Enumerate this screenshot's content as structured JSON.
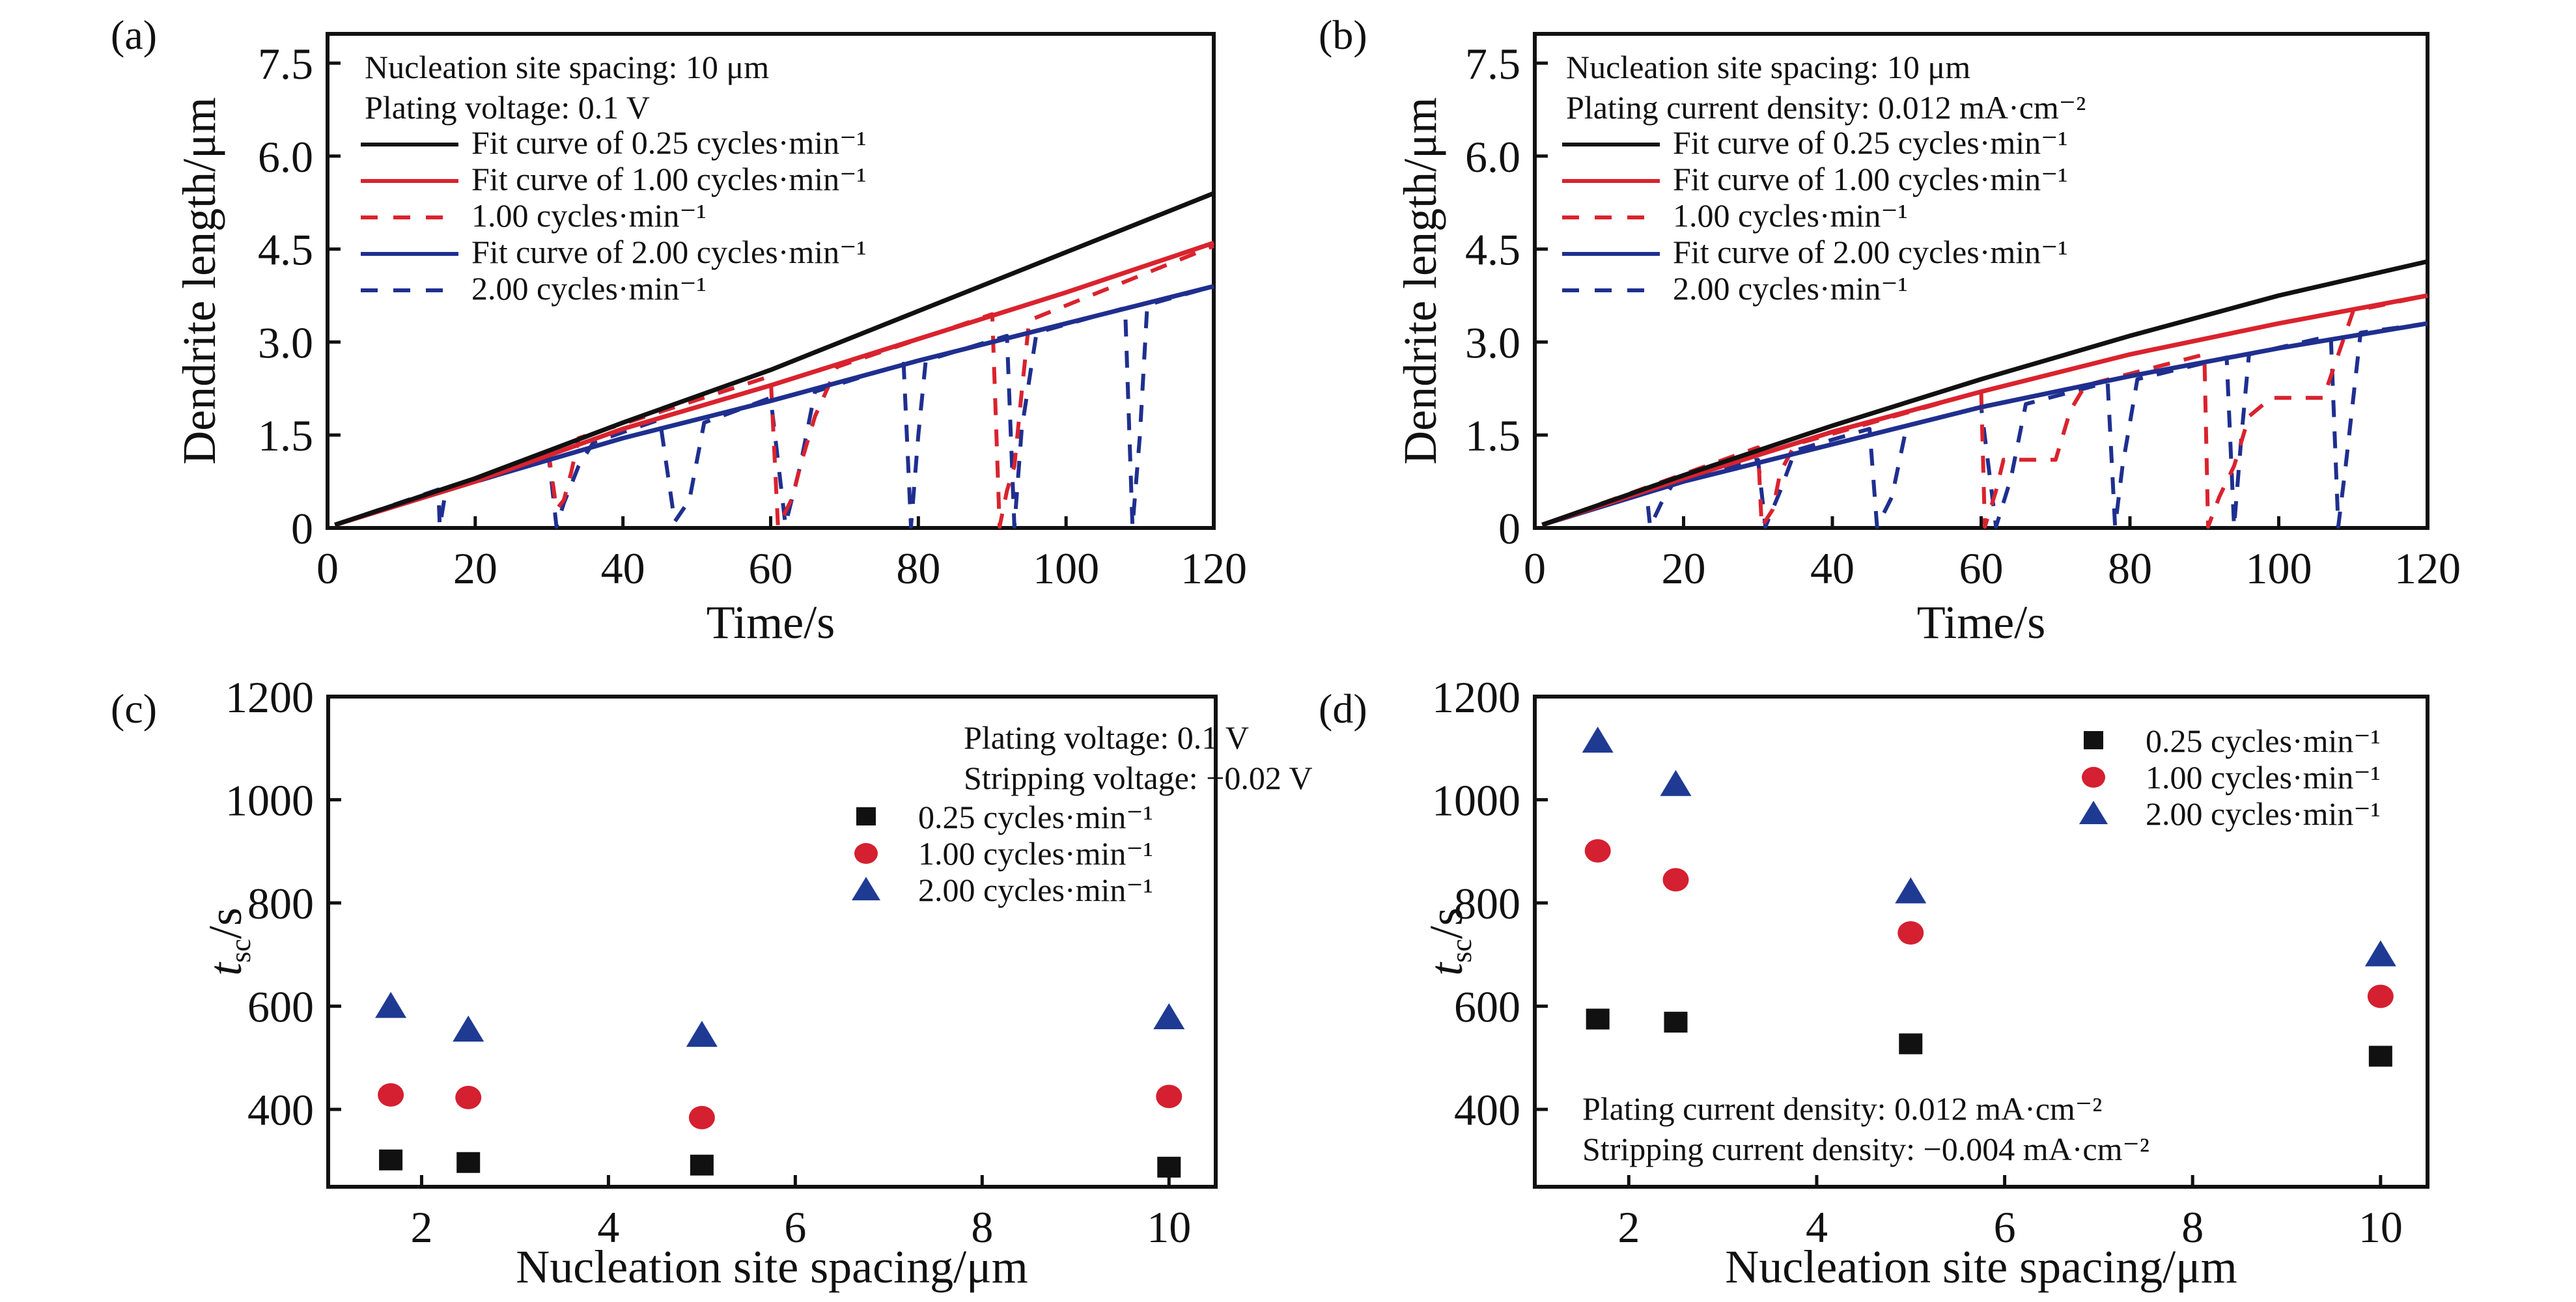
{
  "colors": {
    "black": "#111111",
    "red": "#d9232e",
    "blue": "#1f2f8f",
    "red_marker": "#d42030",
    "blue_marker": "#1f3a93"
  },
  "chart_data": [
    {
      "id": "a",
      "panel_label": "(a)",
      "type": "line",
      "xlabel": "Time/s",
      "ylabel": "Dendrite length/μm",
      "xlim": [
        0,
        120
      ],
      "ylim": [
        0,
        8.0
      ],
      "xticks": [
        0,
        20,
        40,
        60,
        80,
        100,
        120
      ],
      "xtick_labels": [
        "0",
        "20",
        "40",
        "60",
        "80",
        "100",
        "120"
      ],
      "yticks": [
        0,
        1.5,
        3.0,
        4.5,
        6.0,
        7.5
      ],
      "ytick_labels": [
        "0",
        "1.5",
        "3.0",
        "4.5",
        "6.0",
        "7.5"
      ],
      "annotations": [
        "Nucleation site spacing: 10 μm",
        "Plating voltage: 0.1 V"
      ],
      "legend": [
        {
          "label": "Fit curve of 0.25 cycles·min⁻¹",
          "color": "black",
          "style": "solid"
        },
        {
          "label": "Fit curve of 1.00 cycles·min⁻¹",
          "color": "red",
          "style": "solid"
        },
        {
          "label": "1.00 cycles·min⁻¹",
          "color": "red",
          "style": "dashed"
        },
        {
          "label": "Fit curve of 2.00 cycles·min⁻¹",
          "color": "blue",
          "style": "solid"
        },
        {
          "label": "2.00 cycles·min⁻¹",
          "color": "blue",
          "style": "dashed"
        }
      ],
      "legend_position": "top-left",
      "series": [
        {
          "name": "Fit curve of 0.25 cycles·min⁻¹",
          "color": "black",
          "style": "solid",
          "x": [
            1,
            20,
            40,
            60,
            80,
            100,
            120
          ],
          "y": [
            0.05,
            0.8,
            1.7,
            2.55,
            3.5,
            4.45,
            5.4
          ]
        },
        {
          "name": "Fit curve of 1.00 cycles·min⁻¹",
          "color": "red",
          "style": "solid",
          "x": [
            1,
            20,
            40,
            60,
            80,
            100,
            120
          ],
          "y": [
            0.05,
            0.75,
            1.6,
            2.3,
            3.05,
            3.8,
            4.6
          ]
        },
        {
          "name": "Fit curve of 2.00 cycles·min⁻¹",
          "color": "blue",
          "style": "solid",
          "x": [
            1,
            20,
            40,
            60,
            80,
            100,
            120
          ],
          "y": [
            0.05,
            0.75,
            1.45,
            2.05,
            2.7,
            3.3,
            3.9
          ]
        },
        {
          "name": "1.00 cycles·min⁻¹",
          "color": "red",
          "style": "dashed",
          "x": [
            1,
            30,
            31,
            32,
            33,
            34,
            60,
            61,
            63,
            64,
            66,
            69,
            90,
            91,
            92,
            93,
            94,
            95,
            120
          ],
          "y": [
            0.05,
            1.15,
            0.3,
            0.45,
            0.9,
            1.45,
            2.45,
            0.02,
            0.5,
            1.0,
            1.8,
            2.6,
            3.45,
            0.02,
            0.6,
            1.0,
            2.2,
            3.35,
            4.55
          ]
        },
        {
          "name": "2.00 cycles·min⁻¹",
          "color": "blue",
          "style": "dashed",
          "x": [
            1,
            15,
            15.2,
            16,
            30,
            31,
            32,
            34,
            36,
            45,
            47,
            49,
            51,
            60,
            62,
            64,
            66,
            78,
            79,
            80,
            81,
            92,
            93,
            94,
            96,
            108,
            109,
            110,
            111,
            120
          ],
          "y": [
            0.05,
            0.62,
            0.02,
            0.6,
            1.1,
            0.02,
            0.4,
            1.0,
            1.38,
            1.75,
            0.1,
            0.45,
            1.7,
            2.1,
            0.05,
            1.0,
            2.2,
            2.65,
            0.02,
            1.5,
            2.7,
            3.1,
            0.02,
            1.6,
            3.15,
            3.55,
            0.02,
            1.5,
            3.6,
            3.9
          ]
        }
      ]
    },
    {
      "id": "b",
      "panel_label": "(b)",
      "type": "line",
      "xlabel": "Time/s",
      "ylabel": "Dendrite length/μm",
      "xlim": [
        0,
        120
      ],
      "ylim": [
        0,
        8.0
      ],
      "xticks": [
        0,
        20,
        40,
        60,
        80,
        100,
        120
      ],
      "xtick_labels": [
        "0",
        "20",
        "40",
        "60",
        "80",
        "100",
        "120"
      ],
      "yticks": [
        0,
        1.5,
        3.0,
        4.5,
        6.0,
        7.5
      ],
      "ytick_labels": [
        "0",
        "1.5",
        "3.0",
        "4.5",
        "6.0",
        "7.5"
      ],
      "annotations": [
        "Nucleation site spacing: 10 μm",
        "Plating current density: 0.012 mA·cm⁻²"
      ],
      "legend": [
        {
          "label": "Fit curve of 0.25 cycles·min⁻¹",
          "color": "black",
          "style": "solid"
        },
        {
          "label": "Fit curve of 1.00 cycles·min⁻¹",
          "color": "red",
          "style": "solid"
        },
        {
          "label": "1.00 cycles·min⁻¹",
          "color": "red",
          "style": "dashed"
        },
        {
          "label": "Fit curve of 2.00 cycles·min⁻¹",
          "color": "blue",
          "style": "solid"
        },
        {
          "label": "2.00 cycles·min⁻¹",
          "color": "blue",
          "style": "dashed"
        }
      ],
      "legend_position": "top-left",
      "series": [
        {
          "name": "Fit curve of 0.25 cycles·min⁻¹",
          "color": "black",
          "style": "solid",
          "x": [
            1,
            20,
            40,
            60,
            80,
            100,
            120
          ],
          "y": [
            0.05,
            0.85,
            1.65,
            2.4,
            3.1,
            3.75,
            4.3
          ]
        },
        {
          "name": "Fit curve of 1.00 cycles·min⁻¹",
          "color": "red",
          "style": "solid",
          "x": [
            1,
            20,
            40,
            60,
            80,
            100,
            120
          ],
          "y": [
            0.05,
            0.8,
            1.55,
            2.2,
            2.8,
            3.3,
            3.75
          ]
        },
        {
          "name": "Fit curve of 2.00 cycles·min⁻¹",
          "color": "blue",
          "style": "solid",
          "x": [
            1,
            20,
            40,
            60,
            80,
            100,
            120
          ],
          "y": [
            0.05,
            0.75,
            1.35,
            1.95,
            2.45,
            2.9,
            3.3
          ]
        },
        {
          "name": "1.00 cycles·min⁻¹",
          "color": "red",
          "style": "dashed",
          "x": [
            1,
            30,
            30.5,
            32,
            33,
            35,
            60,
            60.5,
            62,
            63,
            65,
            70,
            72,
            74,
            90,
            90.5,
            92,
            94,
            96,
            99,
            104,
            106,
            110,
            120
          ],
          "y": [
            0.05,
            1.3,
            0.02,
            0.3,
            0.9,
            1.35,
            2.2,
            0.02,
            0.6,
            1.1,
            1.1,
            1.1,
            1.9,
            2.3,
            2.8,
            0.02,
            0.5,
            1.0,
            1.8,
            2.1,
            2.1,
            2.1,
            3.5,
            3.75
          ]
        },
        {
          "name": "2.00 cycles·min⁻¹",
          "color": "blue",
          "style": "dashed",
          "x": [
            1,
            15,
            15.5,
            17,
            19,
            30,
            31,
            33,
            35,
            45,
            46,
            48,
            50,
            60,
            62,
            64,
            66,
            77,
            78,
            79,
            81,
            93,
            94,
            95,
            96,
            107,
            108,
            109,
            111,
            120
          ],
          "y": [
            0.05,
            0.6,
            0.02,
            0.4,
            0.8,
            1.1,
            0.02,
            0.6,
            1.25,
            1.6,
            0.02,
            0.5,
            1.65,
            1.95,
            0.02,
            0.8,
            2.0,
            2.35,
            0.02,
            1.0,
            2.4,
            2.75,
            0.02,
            1.5,
            2.8,
            3.1,
            0.02,
            1.0,
            3.15,
            3.3
          ]
        }
      ]
    },
    {
      "id": "c",
      "panel_label": "(c)",
      "type": "scatter",
      "xlabel": "Nucleation site spacing/μm",
      "ylabel_main": "t",
      "ylabel_sub": "sc",
      "ylabel_unit": "/s",
      "xlim": [
        1.0,
        10.5
      ],
      "ylim": [
        250,
        1200
      ],
      "xticks": [
        2,
        4,
        6,
        8,
        10
      ],
      "xtick_labels": [
        "2",
        "4",
        "6",
        "8",
        "10"
      ],
      "yticks": [
        400,
        600,
        800,
        1000,
        1200
      ],
      "ytick_labels": [
        "400",
        "600",
        "800",
        "1000",
        "1200"
      ],
      "annotations": [
        "Plating voltage: 0.1 V",
        "Stripping voltage: −0.02 V"
      ],
      "legend_position": "top-right",
      "series": [
        {
          "name": "0.25 cycles·min⁻¹",
          "marker": "square",
          "color": "black",
          "x": [
            1.67,
            2.5,
            5,
            10
          ],
          "y": [
            302,
            297,
            292,
            288
          ]
        },
        {
          "name": "1.00 cycles·min⁻¹",
          "marker": "circle",
          "color": "red_marker",
          "x": [
            1.67,
            2.5,
            5,
            10
          ],
          "y": [
            428,
            423,
            384,
            425
          ]
        },
        {
          "name": "2.00 cycles·min⁻¹",
          "marker": "triangle",
          "color": "blue_marker",
          "x": [
            1.67,
            2.5,
            5,
            10
          ],
          "y": [
            600,
            554,
            544,
            578
          ]
        }
      ]
    },
    {
      "id": "d",
      "panel_label": "(d)",
      "type": "scatter",
      "xlabel": "Nucleation site spacing/μm",
      "ylabel_main": "t",
      "ylabel_sub": "sc",
      "ylabel_unit": "/s",
      "xlim": [
        1.0,
        10.5
      ],
      "ylim": [
        250,
        1200
      ],
      "xticks": [
        2,
        4,
        6,
        8,
        10
      ],
      "xtick_labels": [
        "2",
        "4",
        "6",
        "8",
        "10"
      ],
      "yticks": [
        400,
        600,
        800,
        1000,
        1200
      ],
      "ytick_labels": [
        "400",
        "600",
        "800",
        "1000",
        "1200"
      ],
      "annotations": [
        "Plating current density: 0.012 mA·cm⁻²",
        "Stripping current density: −0.004 mA·cm⁻²"
      ],
      "legend_position": "top-right",
      "series": [
        {
          "name": "0.25 cycles·min⁻¹",
          "marker": "square",
          "color": "black",
          "x": [
            1.67,
            2.5,
            5,
            10
          ],
          "y": [
            575,
            569,
            527,
            503
          ]
        },
        {
          "name": "1.00 cycles·min⁻¹",
          "marker": "circle",
          "color": "red_marker",
          "x": [
            1.67,
            2.5,
            5,
            10
          ],
          "y": [
            901,
            845,
            742,
            619
          ]
        },
        {
          "name": "2.00 cycles·min⁻¹",
          "marker": "triangle",
          "color": "blue_marker",
          "x": [
            1.67,
            2.5,
            5,
            10
          ],
          "y": [
            1114,
            1030,
            822,
            700
          ]
        }
      ]
    }
  ]
}
